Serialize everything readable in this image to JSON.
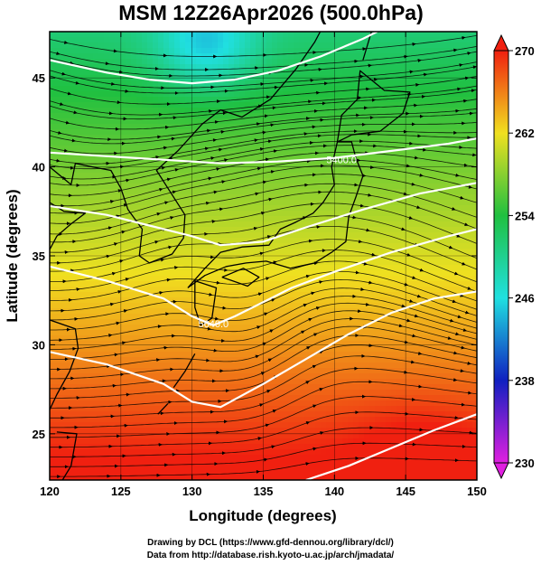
{
  "chart_data": {
    "type": "heatmap",
    "title": "MSM 12Z26Apr2026 (500.0hPa)",
    "xlabel": "Longitude (degrees)",
    "ylabel": "Latitude  (degrees)",
    "xlim": [
      120,
      150
    ],
    "ylim": [
      22.4,
      47.6
    ],
    "x_ticks": [
      120,
      125,
      130,
      135,
      140,
      145,
      150
    ],
    "y_ticks": [
      25,
      30,
      35,
      40,
      45
    ],
    "x_tick_labels": [
      "120",
      "125",
      "130",
      "135",
      "140",
      "145",
      "150"
    ],
    "y_tick_labels": [
      "25",
      "30",
      "35",
      "40",
      "45"
    ],
    "grid": true,
    "colorbar": {
      "placement": "right",
      "range": [
        230,
        270
      ],
      "ticks": [
        230,
        238,
        246,
        254,
        262,
        270
      ],
      "tick_labels": [
        "230",
        "238",
        "246",
        "254",
        "262",
        "270"
      ],
      "colors": [
        "#e020e0",
        "#1020c0",
        "#20e0e0",
        "#20c040",
        "#f0e020",
        "#f02010"
      ]
    },
    "contours": [
      {
        "value": 5400,
        "label": "5400.0",
        "label_at": [
          140.5,
          40.4
        ],
        "points": [
          [
            120,
            40.8
          ],
          [
            124,
            40.6
          ],
          [
            128,
            40.4
          ],
          [
            132,
            40.2
          ],
          [
            136,
            40.3
          ],
          [
            140,
            40.5
          ],
          [
            144,
            40.9
          ],
          [
            148,
            41.3
          ],
          [
            150,
            41.6
          ]
        ]
      },
      {
        "value": 5640,
        "label": "5640.0",
        "label_at": [
          131.5,
          31.2
        ],
        "points": [
          [
            120,
            34.4
          ],
          [
            124,
            33.6
          ],
          [
            128,
            32.6
          ],
          [
            130,
            31.6
          ],
          [
            131.5,
            31.1
          ],
          [
            133,
            31.6
          ],
          [
            135,
            32.4
          ],
          [
            137,
            33.2
          ],
          [
            140,
            34.1
          ],
          [
            144,
            35.2
          ],
          [
            148,
            36.1
          ],
          [
            150,
            36.5
          ]
        ]
      }
    ],
    "unlabeled_contours": [
      [
        [
          120,
          46
        ],
        [
          124,
          45.3
        ],
        [
          127,
          44.9
        ],
        [
          130,
          44.7
        ],
        [
          133,
          44.9
        ],
        [
          136,
          45.4
        ],
        [
          139,
          46.2
        ],
        [
          142,
          47.2
        ],
        [
          143,
          47.6
        ]
      ],
      [
        [
          120,
          37.8
        ],
        [
          124,
          37.3
        ],
        [
          127,
          36.7
        ],
        [
          130,
          36.1
        ],
        [
          132,
          35.6
        ],
        [
          135,
          35.8
        ],
        [
          138,
          36.6
        ],
        [
          142,
          37.6
        ],
        [
          146,
          38.5
        ],
        [
          150,
          39.1
        ]
      ],
      [
        [
          120,
          29.6
        ],
        [
          124,
          28.9
        ],
        [
          128,
          27.8
        ],
        [
          130,
          26.8
        ],
        [
          132,
          26.5
        ],
        [
          135,
          27.8
        ],
        [
          138,
          29.2
        ],
        [
          141,
          30.6
        ],
        [
          144,
          31.8
        ],
        [
          147,
          32.6
        ],
        [
          150,
          33.0
        ]
      ],
      [
        [
          138,
          22.4
        ],
        [
          141,
          23.2
        ],
        [
          144,
          24.2
        ],
        [
          147,
          25.2
        ],
        [
          150,
          26.1
        ]
      ]
    ],
    "annotations": [
      "Drawing by DCL (https://www.gfd-dennou.org/library/dcl/)",
      "Data from http://database.rish.kyoto-u.ac.jp/arch/jmadata/"
    ]
  }
}
